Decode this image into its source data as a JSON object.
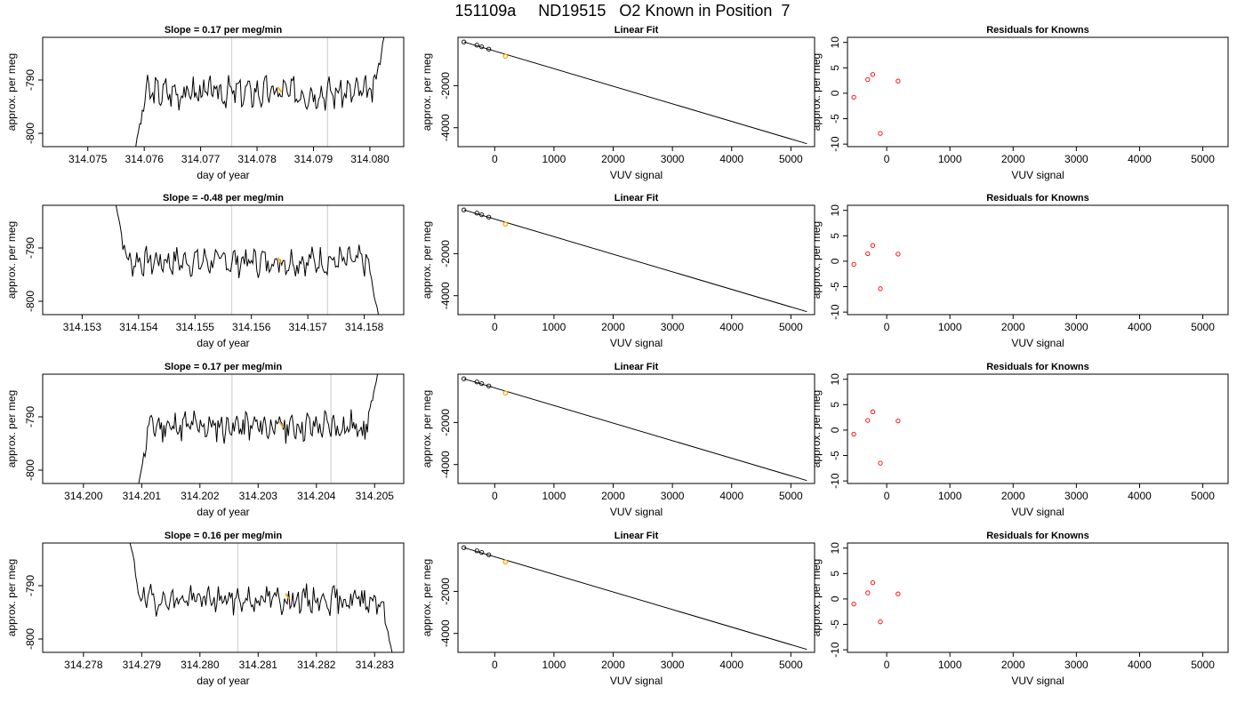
{
  "figure": {
    "title": "151109a     ND19515   O2 Known in Position  7"
  },
  "colors": {
    "line": "#000000",
    "cursor": "#d3d3d3",
    "highlight": "#ffa500",
    "residual_point": "#ff0000"
  },
  "chart_data": [
    {
      "type": "line",
      "title": "Slope =  0.17  per meg/min",
      "xlabel": "day of year",
      "ylabel": "approx. per meg",
      "xlim": [
        314.0742,
        314.0806
      ],
      "ylim": [
        -802.5,
        -782
      ],
      "xticks": [
        314.075,
        314.076,
        314.077,
        314.078,
        314.079,
        314.08
      ],
      "xtick_labels": [
        "314.075",
        "314.076",
        "314.077",
        "314.078",
        "314.079",
        "314.080"
      ],
      "yticks": [
        -790,
        -800
      ],
      "ytick_labels": [
        "-790",
        "-800"
      ],
      "vlines": [
        314.07755,
        314.07925
      ],
      "series_start": 314.07585,
      "series_end": 314.08025,
      "start_value": -802.5,
      "end_value": -782,
      "baseline": -792.3,
      "noise": 2.2,
      "seed": 3,
      "highlight_x": 314.0784,
      "highlight_y": -791.8
    },
    {
      "type": "scatter",
      "title": "Linear Fit",
      "xlabel": "VUV signal",
      "ylabel": "approx. per meg",
      "xlim": [
        -620,
        5400
      ],
      "ylim": [
        -4900,
        300
      ],
      "xticks": [
        0,
        1000,
        2000,
        3000,
        4000,
        5000
      ],
      "xtick_labels": [
        "0",
        "1000",
        "2000",
        "3000",
        "4000",
        "5000"
      ],
      "yticks": [
        -2000,
        -4000
      ],
      "ytick_labels": [
        "-2000",
        "-4000"
      ],
      "points": [
        [
          -520,
          80
        ],
        [
          -300,
          -70
        ],
        [
          -220,
          -150
        ],
        [
          -100,
          -260
        ]
      ],
      "highlight_point": [
        180,
        -600
      ],
      "fit_line": [
        [
          -520,
          80
        ],
        [
          5270,
          -4760
        ]
      ]
    },
    {
      "type": "scatter",
      "title": "Residuals for Knowns",
      "xlabel": "VUV signal",
      "ylabel": "approx. per meg",
      "xlim": [
        -620,
        5400
      ],
      "ylim": [
        -10.5,
        11
      ],
      "xticks": [
        0,
        1000,
        2000,
        3000,
        4000,
        5000
      ],
      "xtick_labels": [
        "0",
        "1000",
        "2000",
        "3000",
        "4000",
        "5000"
      ],
      "yticks": [
        10,
        5,
        0,
        -5,
        -10
      ],
      "ytick_labels": [
        "10",
        "5",
        "0",
        "-5",
        "-10"
      ],
      "points": [
        [
          -520,
          -0.8
        ],
        [
          -300,
          2.7
        ],
        [
          -220,
          3.7
        ],
        [
          -100,
          -7.9
        ],
        [
          180,
          2.4
        ]
      ]
    },
    {
      "type": "line",
      "title": "Slope =  -0.48  per meg/min",
      "xlabel": "day of year",
      "ylabel": "approx. per meg",
      "xlim": [
        314.1523,
        314.1587
      ],
      "ylim": [
        -802.5,
        -782
      ],
      "xticks": [
        314.153,
        314.154,
        314.155,
        314.156,
        314.157,
        314.158
      ],
      "xtick_labels": [
        "314.153",
        "314.154",
        "314.155",
        "314.156",
        "314.157",
        "314.158"
      ],
      "yticks": [
        -790,
        -800
      ],
      "ytick_labels": [
        "-790",
        "-800"
      ],
      "vlines": [
        314.15565,
        314.15735
      ],
      "series_start": 314.1536,
      "series_end": 314.15825,
      "start_value": -782,
      "end_value": -802.5,
      "baseline": -792.5,
      "noise": 2.0,
      "seed": 7,
      "highlight_x": 314.1565,
      "highlight_y": -792.3
    },
    {
      "type": "scatter",
      "title": "Linear Fit",
      "xlabel": "VUV signal",
      "ylabel": "approx. per meg",
      "xlim": [
        -620,
        5400
      ],
      "ylim": [
        -4900,
        300
      ],
      "xticks": [
        0,
        1000,
        2000,
        3000,
        4000,
        5000
      ],
      "xtick_labels": [
        "0",
        "1000",
        "2000",
        "3000",
        "4000",
        "5000"
      ],
      "yticks": [
        -2000,
        -4000
      ],
      "ytick_labels": [
        "-2000",
        "-4000"
      ],
      "points": [
        [
          -520,
          80
        ],
        [
          -300,
          -70
        ],
        [
          -220,
          -150
        ],
        [
          -100,
          -260
        ]
      ],
      "highlight_point": [
        180,
        -600
      ],
      "fit_line": [
        [
          -520,
          80
        ],
        [
          5270,
          -4760
        ]
      ]
    },
    {
      "type": "scatter",
      "title": "Residuals for Knowns",
      "xlabel": "VUV signal",
      "ylabel": "approx. per meg",
      "xlim": [
        -620,
        5400
      ],
      "ylim": [
        -10.5,
        11
      ],
      "xticks": [
        0,
        1000,
        2000,
        3000,
        4000,
        5000
      ],
      "xtick_labels": [
        "0",
        "1000",
        "2000",
        "3000",
        "4000",
        "5000"
      ],
      "yticks": [
        10,
        5,
        0,
        -5,
        -10
      ],
      "ytick_labels": [
        "10",
        "5",
        "0",
        "-5",
        "-10"
      ],
      "points": [
        [
          -520,
          -0.6
        ],
        [
          -300,
          1.5
        ],
        [
          -220,
          3.1
        ],
        [
          -100,
          -5.4
        ],
        [
          180,
          1.4
        ]
      ]
    },
    {
      "type": "line",
      "title": "Slope =  0.17  per meg/min",
      "xlabel": "day of year",
      "ylabel": "approx. per meg",
      "xlim": [
        314.1993,
        314.2055
      ],
      "ylim": [
        -802.5,
        -782
      ],
      "xticks": [
        314.2,
        314.201,
        314.202,
        314.203,
        314.204,
        314.205
      ],
      "xtick_labels": [
        "314.200",
        "314.201",
        "314.202",
        "314.203",
        "314.204",
        "314.205"
      ],
      "yticks": [
        -790,
        -800
      ],
      "ytick_labels": [
        "-790",
        "-800"
      ],
      "vlines": [
        314.20255,
        314.20425
      ],
      "series_start": 314.20095,
      "series_end": 314.20505,
      "start_value": -802.5,
      "end_value": -782,
      "baseline": -791.8,
      "noise": 2.2,
      "seed": 11,
      "highlight_x": 314.2034,
      "highlight_y": -791.5
    },
    {
      "type": "scatter",
      "title": "Linear Fit",
      "xlabel": "VUV signal",
      "ylabel": "approx. per meg",
      "xlim": [
        -620,
        5400
      ],
      "ylim": [
        -4900,
        300
      ],
      "xticks": [
        0,
        1000,
        2000,
        3000,
        4000,
        5000
      ],
      "xtick_labels": [
        "0",
        "1000",
        "2000",
        "3000",
        "4000",
        "5000"
      ],
      "yticks": [
        -2000,
        -4000
      ],
      "ytick_labels": [
        "-2000",
        "-4000"
      ],
      "points": [
        [
          -520,
          80
        ],
        [
          -300,
          -70
        ],
        [
          -220,
          -150
        ],
        [
          -100,
          -260
        ]
      ],
      "highlight_point": [
        180,
        -600
      ],
      "fit_line": [
        [
          -520,
          80
        ],
        [
          5270,
          -4760
        ]
      ]
    },
    {
      "type": "scatter",
      "title": "Residuals for Knowns",
      "xlabel": "VUV signal",
      "ylabel": "approx. per meg",
      "xlim": [
        -620,
        5400
      ],
      "ylim": [
        -10.5,
        11
      ],
      "xticks": [
        0,
        1000,
        2000,
        3000,
        4000,
        5000
      ],
      "xtick_labels": [
        "0",
        "1000",
        "2000",
        "3000",
        "4000",
        "5000"
      ],
      "yticks": [
        10,
        5,
        0,
        -5,
        -10
      ],
      "ytick_labels": [
        "10",
        "5",
        "0",
        "-5",
        "-10"
      ],
      "points": [
        [
          -520,
          -0.8
        ],
        [
          -300,
          1.9
        ],
        [
          -220,
          3.6
        ],
        [
          -100,
          -6.5
        ],
        [
          180,
          1.8
        ]
      ]
    },
    {
      "type": "line",
      "title": "Slope =  0.16  per meg/min",
      "xlabel": "day of year",
      "ylabel": "approx. per meg",
      "xlim": [
        314.2773,
        314.2835
      ],
      "ylim": [
        -802.5,
        -782
      ],
      "xticks": [
        314.278,
        314.279,
        314.28,
        314.281,
        314.282,
        314.283
      ],
      "xtick_labels": [
        "314.278",
        "314.279",
        "314.280",
        "314.281",
        "314.282",
        "314.283"
      ],
      "yticks": [
        -790,
        -800
      ],
      "ytick_labels": [
        "-790",
        "-800"
      ],
      "vlines": [
        314.28065,
        314.28235
      ],
      "series_start": 314.2788,
      "series_end": 314.2833,
      "start_value": -782,
      "end_value": -802.5,
      "baseline": -792.6,
      "noise": 2.0,
      "seed": 19,
      "highlight_x": 314.2815,
      "highlight_y": -792.0
    },
    {
      "type": "scatter",
      "title": "Linear Fit",
      "xlabel": "VUV signal",
      "ylabel": "approx. per meg",
      "xlim": [
        -620,
        5400
      ],
      "ylim": [
        -4900,
        300
      ],
      "xticks": [
        0,
        1000,
        2000,
        3000,
        4000,
        5000
      ],
      "xtick_labels": [
        "0",
        "1000",
        "2000",
        "3000",
        "4000",
        "5000"
      ],
      "yticks": [
        -2000,
        -4000
      ],
      "ytick_labels": [
        "-2000",
        "-4000"
      ],
      "points": [
        [
          -520,
          80
        ],
        [
          -300,
          -70
        ],
        [
          -220,
          -150
        ],
        [
          -100,
          -260
        ]
      ],
      "highlight_point": [
        180,
        -600
      ],
      "fit_line": [
        [
          -520,
          80
        ],
        [
          5270,
          -4760
        ]
      ]
    },
    {
      "type": "scatter",
      "title": "Residuals for Knowns",
      "xlabel": "VUV signal",
      "ylabel": "approx. per meg",
      "xlim": [
        -620,
        5400
      ],
      "ylim": [
        -10.5,
        11
      ],
      "xticks": [
        0,
        1000,
        2000,
        3000,
        4000,
        5000
      ],
      "xtick_labels": [
        "0",
        "1000",
        "2000",
        "3000",
        "4000",
        "5000"
      ],
      "yticks": [
        10,
        5,
        0,
        -5,
        -10
      ],
      "ytick_labels": [
        "10",
        "5",
        "0",
        "-5",
        "-10"
      ],
      "points": [
        [
          -520,
          -1.0
        ],
        [
          -300,
          1.2
        ],
        [
          -220,
          3.2
        ],
        [
          -100,
          -4.5
        ],
        [
          180,
          1.0
        ]
      ]
    }
  ]
}
